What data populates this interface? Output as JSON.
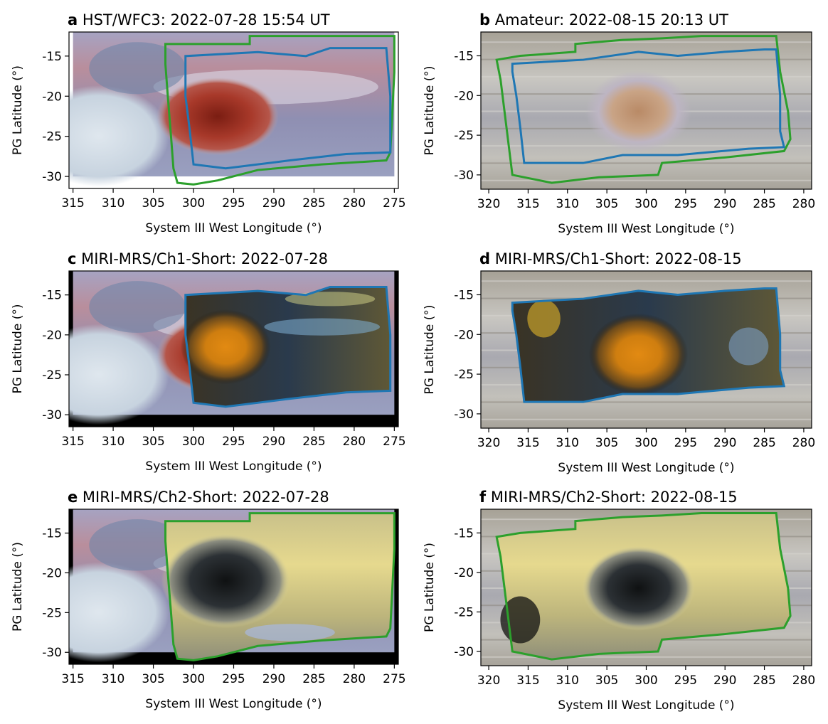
{
  "chart_data": [
    {
      "panel": "a",
      "type": "image",
      "title_letter": "a",
      "title": "HST/WFC3: 2022-07-28 15:54 UT",
      "xlabel": "System III West Longitude (°)",
      "ylabel": "PG Latitude (°)",
      "xlim": [
        315.5,
        274.5
      ],
      "ylim": [
        -31.5,
        -12
      ],
      "xticks": [
        315,
        310,
        305,
        300,
        295,
        290,
        285,
        280,
        275
      ],
      "yticks": [
        -15,
        -20,
        -25,
        -30
      ],
      "image_extent": {
        "lon": [
          315,
          275
        ],
        "lat": [
          -30,
          -12
        ]
      },
      "background": "#ffffff",
      "outlines": [
        {
          "color": "#2ca02c",
          "points": [
            [
              303.5,
              -16
            ],
            [
              303.5,
              -13.5
            ],
            [
              293,
              -13.5
            ],
            [
              293,
              -12.5
            ],
            [
              282,
              -12.5
            ],
            [
              275,
              -12.5
            ],
            [
              275,
              -17
            ],
            [
              275.5,
              -27
            ],
            [
              276,
              -28
            ],
            [
              284,
              -28.5
            ],
            [
              292,
              -29.2
            ],
            [
              297,
              -30.5
            ],
            [
              300,
              -31
            ],
            [
              302,
              -30.8
            ],
            [
              302.5,
              -29
            ],
            [
              302.8,
              -25
            ],
            [
              303.2,
              -20
            ],
            [
              303.5,
              -16
            ]
          ]
        },
        {
          "color": "#1f77b4",
          "points": [
            [
              301,
              -16
            ],
            [
              301,
              -15
            ],
            [
              292,
              -14.5
            ],
            [
              286,
              -15
            ],
            [
              283,
              -14
            ],
            [
              276,
              -14
            ],
            [
              275.5,
              -20
            ],
            [
              275.5,
              -27
            ],
            [
              281,
              -27.2
            ],
            [
              288,
              -28
            ],
            [
              292,
              -28.5
            ],
            [
              296,
              -29
            ],
            [
              300,
              -28.5
            ],
            [
              300.5,
              -24
            ],
            [
              301,
              -20
            ],
            [
              301,
              -16
            ]
          ]
        }
      ]
    },
    {
      "panel": "b",
      "type": "image",
      "title_letter": "b",
      "title": "Amateur: 2022-08-15 20:13 UT",
      "xlabel": "System III West Longitude (°)",
      "ylabel": "PG Latitude (°)",
      "xlim": [
        321,
        279
      ],
      "ylim": [
        -31.8,
        -12
      ],
      "xticks": [
        320,
        315,
        310,
        305,
        300,
        295,
        290,
        285,
        280
      ],
      "yticks": [
        -15,
        -20,
        -25,
        -30
      ],
      "image_extent": {
        "lon": [
          321,
          279
        ],
        "lat": [
          -31.8,
          -12
        ]
      },
      "background": "#b9b8b3",
      "outlines": [
        {
          "color": "#2ca02c",
          "points": [
            [
              319,
              -15.5
            ],
            [
              316,
              -15
            ],
            [
              309,
              -14.5
            ],
            [
              309,
              -13.5
            ],
            [
              303,
              -13
            ],
            [
              298,
              -12.8
            ],
            [
              293,
              -12.5
            ],
            [
              288,
              -12.5
            ],
            [
              283.5,
              -12.5
            ],
            [
              283,
              -17
            ],
            [
              282,
              -22
            ],
            [
              281.7,
              -25.5
            ],
            [
              282.5,
              -27
            ],
            [
              290,
              -27.8
            ],
            [
              298,
              -28.5
            ],
            [
              298.5,
              -30
            ],
            [
              306,
              -30.3
            ],
            [
              312,
              -31
            ],
            [
              317,
              -30
            ],
            [
              317.5,
              -26
            ],
            [
              318,
              -22
            ],
            [
              318.5,
              -18
            ],
            [
              319,
              -15.5
            ]
          ]
        },
        {
          "color": "#1f77b4",
          "points": [
            [
              317,
              -17
            ],
            [
              317,
              -16
            ],
            [
              308,
              -15.5
            ],
            [
              301,
              -14.5
            ],
            [
              296,
              -15
            ],
            [
              290,
              -14.5
            ],
            [
              285,
              -14.2
            ],
            [
              283.5,
              -14.2
            ],
            [
              283,
              -20
            ],
            [
              283,
              -24.5
            ],
            [
              282.5,
              -26.5
            ],
            [
              287,
              -26.7
            ],
            [
              296,
              -27.5
            ],
            [
              303,
              -27.5
            ],
            [
              308,
              -28.5
            ],
            [
              315.5,
              -28.5
            ],
            [
              316,
              -24
            ],
            [
              316.5,
              -20
            ],
            [
              317,
              -17
            ]
          ]
        }
      ]
    },
    {
      "panel": "c",
      "type": "image",
      "title_letter": "c",
      "title": "MIRI-MRS/Ch1-Short: 2022-07-28",
      "xlabel": "System III West Longitude (°)",
      "ylabel": "PG Latitude (°)",
      "xlim": [
        315.5,
        274.5
      ],
      "ylim": [
        -31.5,
        -12
      ],
      "xticks": [
        315,
        310,
        305,
        300,
        295,
        290,
        285,
        280,
        275
      ],
      "yticks": [
        -15,
        -20,
        -25,
        -30
      ],
      "image_extent": {
        "lon": [
          315,
          275
        ],
        "lat": [
          -30,
          -12
        ]
      },
      "background": "#000000",
      "outlines": [
        {
          "color": "#1f77b4",
          "points": [
            [
              301,
              -16
            ],
            [
              301,
              -15
            ],
            [
              292,
              -14.5
            ],
            [
              286,
              -15
            ],
            [
              283,
              -14
            ],
            [
              276,
              -14
            ],
            [
              275.5,
              -20
            ],
            [
              275.5,
              -27
            ],
            [
              281,
              -27.2
            ],
            [
              288,
              -28
            ],
            [
              292,
              -28.5
            ],
            [
              296,
              -29
            ],
            [
              300,
              -28.5
            ],
            [
              300.5,
              -24
            ],
            [
              301,
              -20
            ],
            [
              301,
              -16
            ]
          ]
        }
      ]
    },
    {
      "panel": "d",
      "type": "image",
      "title_letter": "d",
      "title": "MIRI-MRS/Ch1-Short: 2022-08-15",
      "xlabel": "System III West Longitude (°)",
      "ylabel": "PG Latitude (°)",
      "xlim": [
        321,
        279
      ],
      "ylim": [
        -31.8,
        -12
      ],
      "xticks": [
        320,
        315,
        310,
        305,
        300,
        295,
        290,
        285,
        280
      ],
      "yticks": [
        -15,
        -20,
        -25,
        -30
      ],
      "image_extent": {
        "lon": [
          321,
          279
        ],
        "lat": [
          -31.8,
          -12
        ]
      },
      "background": "#b9b8b3",
      "outlines": [
        {
          "color": "#1f77b4",
          "points": [
            [
              317,
              -17
            ],
            [
              317,
              -16
            ],
            [
              308,
              -15.5
            ],
            [
              301,
              -14.5
            ],
            [
              296,
              -15
            ],
            [
              290,
              -14.5
            ],
            [
              285,
              -14.2
            ],
            [
              283.5,
              -14.2
            ],
            [
              283,
              -20
            ],
            [
              283,
              -24.5
            ],
            [
              282.5,
              -26.5
            ],
            [
              287,
              -26.7
            ],
            [
              296,
              -27.5
            ],
            [
              303,
              -27.5
            ],
            [
              308,
              -28.5
            ],
            [
              315.5,
              -28.5
            ],
            [
              316,
              -24
            ],
            [
              316.5,
              -20
            ],
            [
              317,
              -17
            ]
          ]
        }
      ]
    },
    {
      "panel": "e",
      "type": "image",
      "title_letter": "e",
      "title": "MIRI-MRS/Ch2-Short: 2022-07-28",
      "xlabel": "System III West Longitude (°)",
      "ylabel": "PG Latitude (°)",
      "xlim": [
        315.5,
        274.5
      ],
      "ylim": [
        -31.5,
        -12
      ],
      "xticks": [
        315,
        310,
        305,
        300,
        295,
        290,
        285,
        280,
        275
      ],
      "yticks": [
        -15,
        -20,
        -25,
        -30
      ],
      "image_extent": {
        "lon": [
          315,
          275
        ],
        "lat": [
          -30,
          -12
        ]
      },
      "background": "#000000",
      "outlines": [
        {
          "color": "#2ca02c",
          "points": [
            [
              303.5,
              -16
            ],
            [
              303.5,
              -13.5
            ],
            [
              293,
              -13.5
            ],
            [
              293,
              -12.5
            ],
            [
              282,
              -12.5
            ],
            [
              275,
              -12.5
            ],
            [
              275,
              -17
            ],
            [
              275.5,
              -27
            ],
            [
              276,
              -28
            ],
            [
              284,
              -28.5
            ],
            [
              292,
              -29.2
            ],
            [
              297,
              -30.5
            ],
            [
              300,
              -31
            ],
            [
              302,
              -30.8
            ],
            [
              302.5,
              -29
            ],
            [
              302.8,
              -25
            ],
            [
              303.2,
              -20
            ],
            [
              303.5,
              -16
            ]
          ]
        }
      ]
    },
    {
      "panel": "f",
      "type": "image",
      "title_letter": "f",
      "title": "MIRI-MRS/Ch2-Short: 2022-08-15",
      "xlabel": "System III West Longitude (°)",
      "ylabel": "PG Latitude (°)",
      "xlim": [
        321,
        279
      ],
      "ylim": [
        -31.8,
        -12
      ],
      "xticks": [
        320,
        315,
        310,
        305,
        300,
        295,
        290,
        285,
        280
      ],
      "yticks": [
        -15,
        -20,
        -25,
        -30
      ],
      "image_extent": {
        "lon": [
          321,
          279
        ],
        "lat": [
          -31.8,
          -12
        ]
      },
      "background": "#b9b8b3",
      "outlines": [
        {
          "color": "#2ca02c",
          "points": [
            [
              319,
              -15.5
            ],
            [
              316,
              -15
            ],
            [
              309,
              -14.5
            ],
            [
              309,
              -13.5
            ],
            [
              303,
              -13
            ],
            [
              298,
              -12.8
            ],
            [
              293,
              -12.5
            ],
            [
              288,
              -12.5
            ],
            [
              283.5,
              -12.5
            ],
            [
              283,
              -17
            ],
            [
              282,
              -22
            ],
            [
              281.7,
              -25.5
            ],
            [
              282.5,
              -27
            ],
            [
              290,
              -27.8
            ],
            [
              298,
              -28.5
            ],
            [
              298.5,
              -30
            ],
            [
              306,
              -30.3
            ],
            [
              312,
              -31
            ],
            [
              317,
              -30
            ],
            [
              317.5,
              -26
            ],
            [
              318,
              -22
            ],
            [
              318.5,
              -18
            ],
            [
              319,
              -15.5
            ]
          ]
        }
      ]
    }
  ]
}
